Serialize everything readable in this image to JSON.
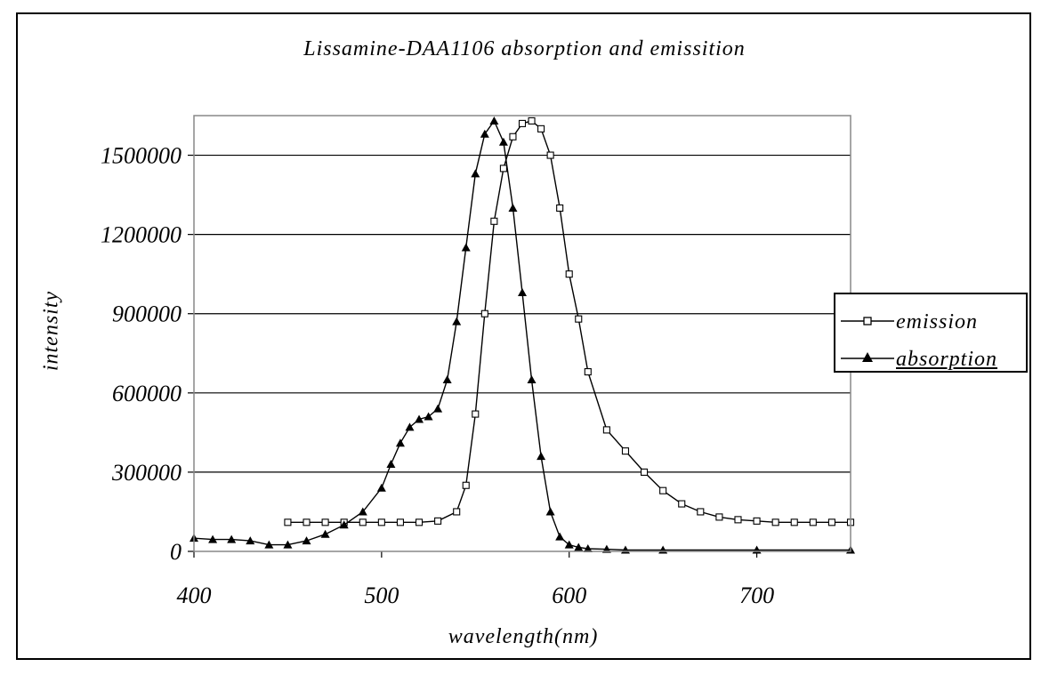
{
  "chart_data": {
    "type": "line",
    "title": "Lissamine-DAA1106 absorption and emissition",
    "xlabel": "wavelength(nm)",
    "ylabel": "intensity",
    "xlim": [
      400,
      750
    ],
    "ylim": [
      0,
      1650000
    ],
    "x_ticks": [
      400,
      500,
      600,
      700
    ],
    "y_ticks": [
      0,
      300000,
      600000,
      900000,
      1200000,
      1500000
    ],
    "y_tick_labels": [
      "0",
      "300000",
      "600000",
      "900000",
      "1200000",
      "1500000"
    ],
    "grid": "horizontal",
    "legend": "right",
    "series": [
      {
        "name": "emission",
        "marker": "open-square",
        "x": [
          450,
          460,
          470,
          480,
          490,
          500,
          510,
          520,
          530,
          540,
          545,
          550,
          555,
          560,
          565,
          570,
          575,
          580,
          585,
          590,
          595,
          600,
          605,
          610,
          620,
          630,
          640,
          650,
          660,
          670,
          680,
          690,
          700,
          710,
          720,
          730,
          740,
          750
        ],
        "y": [
          110000,
          110000,
          110000,
          110000,
          110000,
          110000,
          110000,
          110000,
          115000,
          150000,
          250000,
          520000,
          900000,
          1250000,
          1450000,
          1570000,
          1620000,
          1630000,
          1600000,
          1500000,
          1300000,
          1050000,
          880000,
          680000,
          460000,
          380000,
          300000,
          230000,
          180000,
          150000,
          130000,
          120000,
          115000,
          110000,
          110000,
          110000,
          110000,
          110000
        ]
      },
      {
        "name": "absorption",
        "marker": "filled-triangle",
        "x": [
          400,
          410,
          420,
          430,
          440,
          450,
          460,
          470,
          480,
          490,
          500,
          505,
          510,
          515,
          520,
          525,
          530,
          535,
          540,
          545,
          550,
          555,
          560,
          565,
          570,
          575,
          580,
          585,
          590,
          595,
          600,
          605,
          610,
          620,
          630,
          650,
          700,
          750
        ],
        "y": [
          50000,
          45000,
          45000,
          40000,
          25000,
          25000,
          40000,
          65000,
          100000,
          150000,
          240000,
          330000,
          410000,
          470000,
          500000,
          510000,
          540000,
          650000,
          870000,
          1150000,
          1430000,
          1580000,
          1630000,
          1550000,
          1300000,
          980000,
          650000,
          360000,
          150000,
          55000,
          25000,
          15000,
          10000,
          8000,
          5000,
          5000,
          5000,
          5000
        ]
      }
    ]
  }
}
